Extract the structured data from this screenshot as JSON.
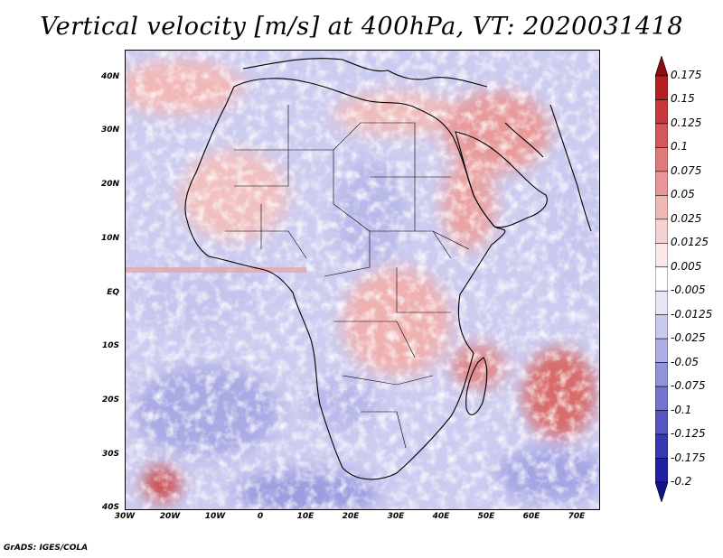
{
  "title": "Vertical velocity [m/s] at 400hPa, VT: 2020031418",
  "credit": "GrADS: IGES/COLA",
  "map": {
    "region": "Africa",
    "lat_labels": [
      "40N",
      "30N",
      "20N",
      "10N",
      "EQ",
      "10S",
      "20S",
      "30S",
      "40S"
    ],
    "lon_labels": [
      "30W",
      "20W",
      "10W",
      "0",
      "10E",
      "20E",
      "30E",
      "40E",
      "50E",
      "60E",
      "70E"
    ],
    "lat_range": [
      -40,
      45
    ],
    "lon_range": [
      -30,
      75
    ]
  },
  "colorbar": {
    "labels": [
      "0.175",
      "0.15",
      "0.125",
      "0.1",
      "0.075",
      "0.05",
      "0.025",
      "0.0125",
      "0.005",
      "-0.005",
      "-0.0125",
      "-0.025",
      "-0.05",
      "-0.075",
      "-0.1",
      "-0.125",
      "-0.175",
      "-0.2"
    ],
    "colors": [
      "#8b0d12",
      "#b41f24",
      "#c8383a",
      "#d4585a",
      "#df7a7a",
      "#e89898",
      "#f0b7b7",
      "#f6d3d3",
      "#fbe9e9",
      "#ffffff",
      "#e6e6f6",
      "#c9c9ee",
      "#aeaee6",
      "#9393dc",
      "#7474d0",
      "#5656c2",
      "#3838b0",
      "#2020a0",
      "#12128a"
    ]
  }
}
